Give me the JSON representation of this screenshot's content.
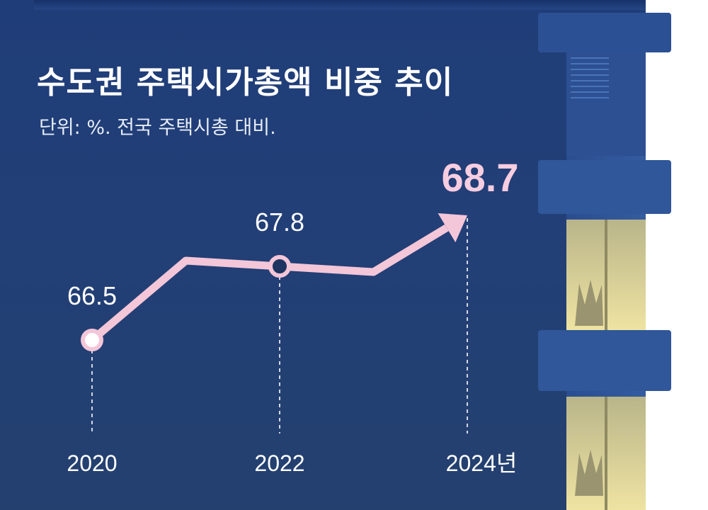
{
  "title": "수도권 주택시가총액 비중 추이",
  "subtitle": "단위: %. 전국 주택시총 대비.",
  "colors": {
    "line": "#f3c6d8",
    "highlight_label": "#f7cde0",
    "background": "#1f3d78",
    "window_light": "#e8dfa0"
  },
  "chart_data": {
    "type": "line",
    "title": "수도권 주택시가총액 비중 추이",
    "unit": "%",
    "x": [
      "2020",
      "2021",
      "2022",
      "2023",
      "2024"
    ],
    "tick_labels": [
      "2020",
      "2022",
      "2024년"
    ],
    "values": [
      66.5,
      67.9,
      67.8,
      67.7,
      68.7
    ],
    "point_labels": [
      {
        "index": 0,
        "text": "66.5"
      },
      {
        "index": 2,
        "text": "67.8"
      },
      {
        "index": 4,
        "text": "68.7"
      }
    ],
    "ylim": [
      65.5,
      69.5
    ],
    "grid": false,
    "legend": "none"
  }
}
